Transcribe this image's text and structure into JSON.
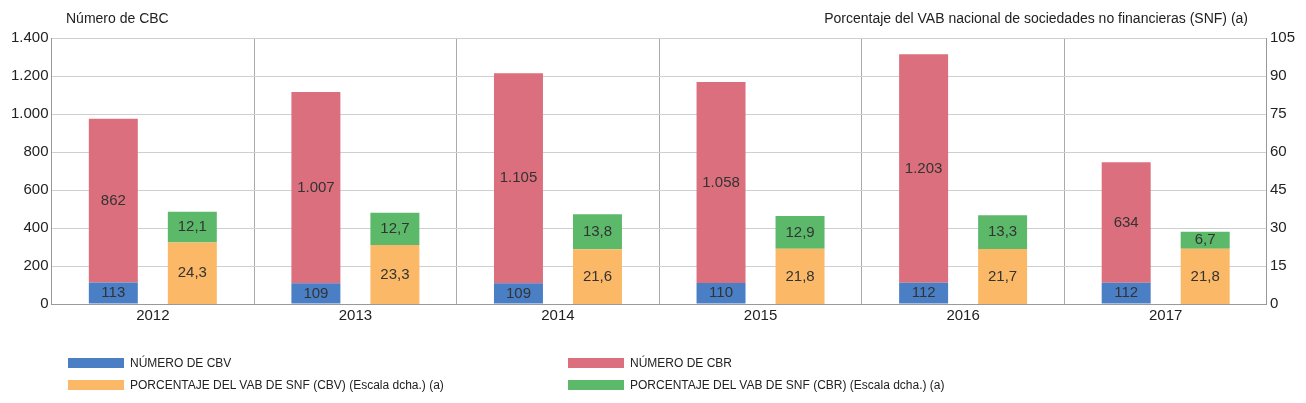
{
  "chart_data": {
    "type": "bar",
    "stacked": true,
    "ylabel": "Número de CBC",
    "y2label": "Porcentaje del VAB nacional de sociedades no financieras (SNF) (a)",
    "categories": [
      "2012",
      "2013",
      "2014",
      "2015",
      "2016",
      "2017"
    ],
    "series": [
      {
        "name": "NÚMERO DE CBV",
        "color": "#4a7fc6",
        "values": [
          113,
          109,
          109,
          110,
          112,
          112
        ],
        "value_labels": [
          "113",
          "109",
          "109",
          "110",
          "112",
          "112"
        ]
      },
      {
        "name": "NÚMERO DE CBR",
        "color": "#db6f7d",
        "values": [
          862,
          1007,
          1105,
          1058,
          1203,
          634
        ],
        "value_labels": [
          "862",
          "1.007",
          "1.105",
          "1.058",
          "1.203",
          "634"
        ]
      },
      {
        "name": "PORCENTAJE DEL VAB DE SNF (CBV) (Escala dcha.) (a)",
        "color": "#fbb967",
        "axis": "y2",
        "values": [
          24.3,
          23.3,
          21.6,
          21.8,
          21.7,
          21.8
        ],
        "value_labels": [
          "24,3",
          "23,3",
          "21,6",
          "21,8",
          "21,7",
          "21,8"
        ]
      },
      {
        "name": "PORCENTAJE DEL VAB DE SNF (CBR) (Escala dcha.) (a)",
        "color": "#5cb96a",
        "axis": "y2",
        "values": [
          12.1,
          12.7,
          13.8,
          12.9,
          13.3,
          6.7
        ],
        "value_labels": [
          "12,1",
          "12,7",
          "13,8",
          "12,9",
          "13,3",
          "6,7"
        ]
      }
    ],
    "ylim": [
      0,
      1400
    ],
    "yticks": [
      0,
      {
        "value": 200,
        "label": "200"
      },
      {
        "value": 400,
        "label": "400"
      },
      {
        "value": 600,
        "label": "600"
      },
      {
        "value": 800,
        "label": "800"
      },
      {
        "value": 1000,
        "label": "1.000"
      },
      {
        "value": 1200,
        "label": "1.200"
      },
      {
        "value": 1400,
        "label": "1.400"
      }
    ],
    "y2lim": [
      0,
      105
    ],
    "y2ticks": [
      0,
      15,
      30,
      45,
      60,
      75,
      90,
      105
    ],
    "grid": true,
    "legend": "bottom"
  }
}
